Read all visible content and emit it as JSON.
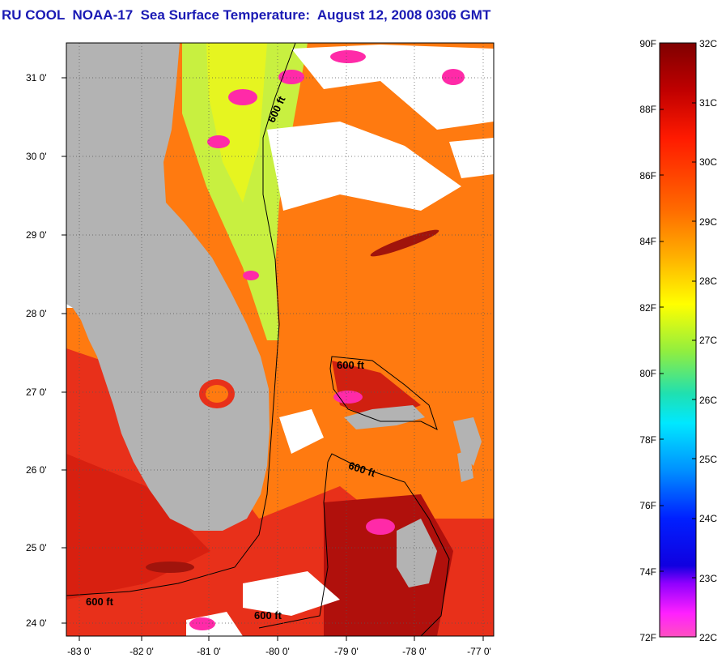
{
  "title": "RU COOL  NOAA-17  Sea Surface Temperature:  August 12, 2008 0306 GMT",
  "map": {
    "lon_labels": [
      "-83 0'",
      "-82 0'",
      "-81 0'",
      "-80 0'",
      "-79 0'",
      "-78 0'",
      "-77 0'"
    ],
    "lat_labels": [
      "31 0'",
      "30 0'",
      "29 0'",
      "28 0'",
      "27 0'",
      "26 0'",
      "25 0'",
      "24 0'"
    ],
    "contour_labels": [
      "600 ft",
      "600 ft",
      "600 ft",
      "600 ft",
      "600 ft"
    ],
    "colors": {
      "land": "#b3b3b3",
      "cloud": "#ffffff",
      "warm_water": "#ff7a10",
      "hot_water": "#d81a10",
      "cool_water": "#c8f040"
    }
  },
  "colorbar": {
    "fahrenheit_labels": [
      "90F",
      "88F",
      "86F",
      "84F",
      "82F",
      "80F",
      "78F",
      "76F",
      "74F",
      "72F"
    ],
    "celsius_labels": [
      "32C",
      "31C",
      "30C",
      "29C",
      "28C",
      "27C",
      "26C",
      "25C",
      "24C",
      "23C",
      "22C"
    ],
    "gradient": [
      "#7f0000",
      "#c00000",
      "#ff1a00",
      "#ff6a00",
      "#ffb000",
      "#ffff00",
      "#90ee40",
      "#20e0b0",
      "#00e8ff",
      "#0090ff",
      "#0020ff",
      "#1000e0",
      "#9000ff",
      "#ff20ff",
      "#ff50c0"
    ]
  }
}
